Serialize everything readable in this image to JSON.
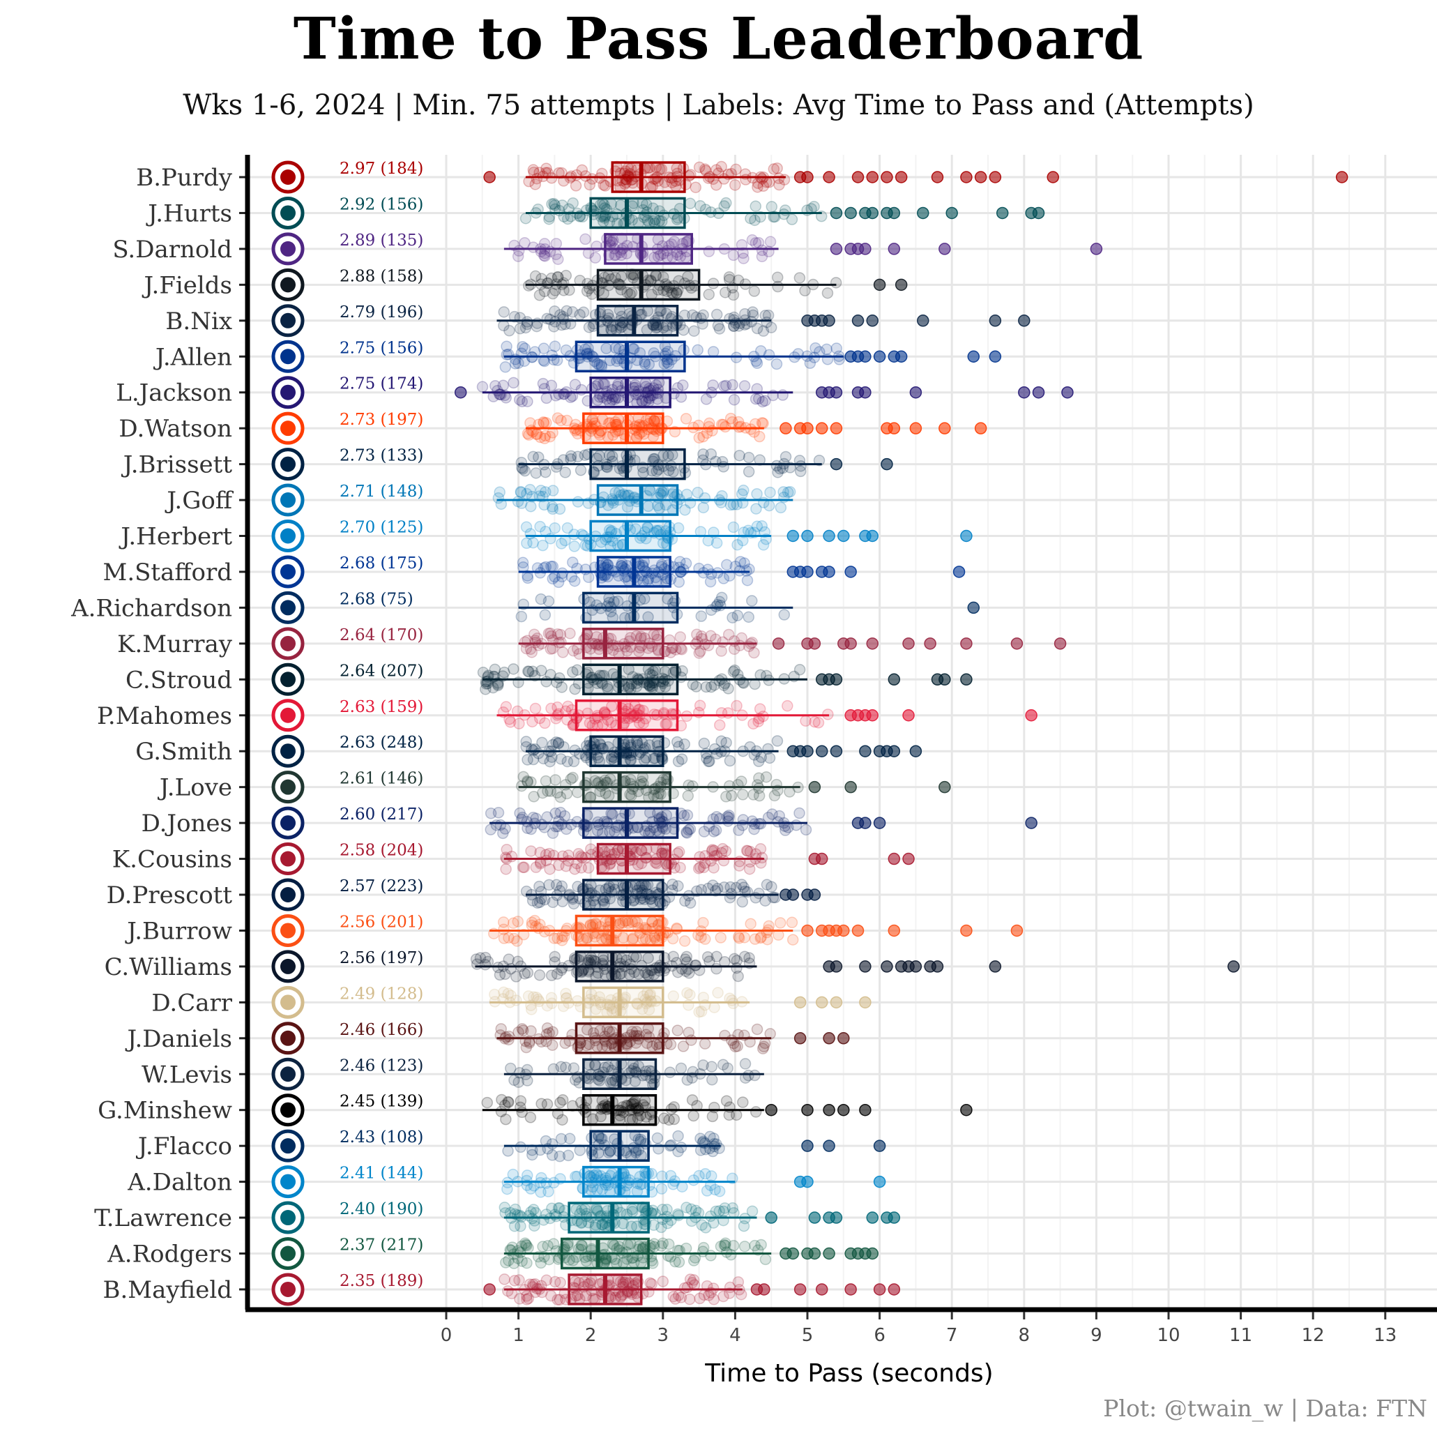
{
  "title": "Time to Pass Leaderboard",
  "subtitle": "Wks 1-6, 2024 | Min. 75 attempts | Labels: Avg Time to Pass and (Attempts)",
  "caption": "Plot: @twain_w | Data: FTN",
  "chart_data": {
    "type": "boxplot",
    "orientation": "horizontal",
    "xlabel": "Time to Pass (seconds)",
    "ylabel": "",
    "xlim": [
      0,
      13
    ],
    "xticks": [
      0,
      1,
      2,
      3,
      4,
      5,
      6,
      7,
      8,
      9,
      10,
      11,
      12,
      13
    ],
    "grid": true,
    "legend": "none",
    "labels_note": "Avg Time to Pass and (Attempts)",
    "series": [
      {
        "name": "B.Purdy",
        "team_icon": "49ers-logo",
        "color": "#aa0000",
        "avg": "2.97",
        "attempts": "184",
        "label": "2.97 (184)",
        "whisker_low": 1.1,
        "q1": 2.3,
        "median": 2.7,
        "q3": 3.3,
        "whisker_high": 4.7,
        "outliers": [
          0.6,
          4.9,
          5.0,
          5.3,
          5.7,
          5.9,
          6.1,
          6.3,
          6.8,
          7.2,
          7.4,
          7.6,
          8.4,
          12.4
        ]
      },
      {
        "name": "J.Hurts",
        "team_icon": "eagles-logo",
        "color": "#004c54",
        "avg": "2.92",
        "attempts": "156",
        "label": "2.92 (156)",
        "whisker_low": 1.1,
        "q1": 2.0,
        "median": 2.5,
        "q3": 3.3,
        "whisker_high": 5.2,
        "outliers": [
          5.4,
          5.6,
          5.8,
          5.9,
          6.1,
          6.2,
          6.6,
          7.0,
          7.7,
          8.1,
          8.2
        ]
      },
      {
        "name": "S.Darnold",
        "team_icon": "vikings-logo",
        "color": "#4f2683",
        "avg": "2.89",
        "attempts": "135",
        "label": "2.89 (135)",
        "whisker_low": 0.8,
        "q1": 2.2,
        "median": 2.7,
        "q3": 3.4,
        "whisker_high": 4.6,
        "outliers": [
          5.4,
          5.6,
          5.7,
          5.8,
          6.2,
          6.9,
          9.0
        ]
      },
      {
        "name": "J.Fields",
        "team_icon": "steelers-logo",
        "color": "#101820",
        "avg": "2.88",
        "attempts": "158",
        "label": "2.88 (158)",
        "whisker_low": 1.1,
        "q1": 2.1,
        "median": 2.7,
        "q3": 3.5,
        "whisker_high": 5.4,
        "outliers": [
          6.0,
          6.3
        ]
      },
      {
        "name": "B.Nix",
        "team_icon": "broncos-logo",
        "color": "#0a2343",
        "avg": "2.79",
        "attempts": "196",
        "label": "2.79 (196)",
        "whisker_low": 0.7,
        "q1": 2.1,
        "median": 2.6,
        "q3": 3.2,
        "whisker_high": 4.5,
        "outliers": [
          5.0,
          5.1,
          5.2,
          5.3,
          5.7,
          5.9,
          6.6,
          7.6,
          8.0
        ]
      },
      {
        "name": "J.Allen",
        "team_icon": "bills-logo",
        "color": "#00338d",
        "avg": "2.75",
        "attempts": "156",
        "label": "2.75 (156)",
        "whisker_low": 0.8,
        "q1": 1.8,
        "median": 2.5,
        "q3": 3.3,
        "whisker_high": 5.5,
        "outliers": [
          5.6,
          5.7,
          5.8,
          6.0,
          6.2,
          6.3,
          7.3,
          7.6
        ]
      },
      {
        "name": "L.Jackson",
        "team_icon": "ravens-logo",
        "color": "#241773",
        "avg": "2.75",
        "attempts": "174",
        "label": "2.75 (174)",
        "whisker_low": 0.5,
        "q1": 2.0,
        "median": 2.5,
        "q3": 3.1,
        "whisker_high": 4.8,
        "outliers": [
          0.2,
          5.2,
          5.3,
          5.4,
          5.7,
          5.8,
          6.5,
          8.0,
          8.2,
          8.6
        ]
      },
      {
        "name": "D.Watson",
        "team_icon": "browns-logo",
        "color": "#ff3c00",
        "avg": "2.73",
        "attempts": "197",
        "label": "2.73 (197)",
        "whisker_low": 1.1,
        "q1": 1.9,
        "median": 2.5,
        "q3": 3.0,
        "whisker_high": 4.4,
        "outliers": [
          4.7,
          4.9,
          5.0,
          5.2,
          5.4,
          6.1,
          6.2,
          6.5,
          6.9,
          7.4
        ]
      },
      {
        "name": "J.Brissett",
        "team_icon": "patriots-logo",
        "color": "#002244",
        "avg": "2.73",
        "attempts": "133",
        "label": "2.73 (133)",
        "whisker_low": 1.0,
        "q1": 2.0,
        "median": 2.5,
        "q3": 3.3,
        "whisker_high": 5.2,
        "outliers": [
          5.4,
          6.1
        ]
      },
      {
        "name": "J.Goff",
        "team_icon": "lions-logo",
        "color": "#0076b6",
        "avg": "2.71",
        "attempts": "148",
        "label": "2.71 (148)",
        "whisker_low": 0.7,
        "q1": 2.1,
        "median": 2.7,
        "q3": 3.2,
        "whisker_high": 4.8,
        "outliers": []
      },
      {
        "name": "J.Herbert",
        "team_icon": "chargers-logo",
        "color": "#0080c6",
        "avg": "2.70",
        "attempts": "125",
        "label": "2.70 (125)",
        "whisker_low": 1.1,
        "q1": 2.0,
        "median": 2.5,
        "q3": 3.1,
        "whisker_high": 4.5,
        "outliers": [
          4.8,
          5.0,
          5.3,
          5.5,
          5.8,
          5.9,
          7.2
        ]
      },
      {
        "name": "M.Stafford",
        "team_icon": "rams-logo",
        "color": "#003594",
        "avg": "2.68",
        "attempts": "175",
        "label": "2.68 (175)",
        "whisker_low": 1.0,
        "q1": 2.1,
        "median": 2.6,
        "q3": 3.1,
        "whisker_high": 4.2,
        "outliers": [
          4.8,
          4.9,
          5.0,
          5.2,
          5.3,
          5.6,
          7.1
        ]
      },
      {
        "name": "A.Richardson",
        "team_icon": "colts-logo",
        "color": "#002c5f",
        "avg": "2.68",
        "attempts": "75",
        "label": "2.68 (75)",
        "whisker_low": 1.0,
        "q1": 1.9,
        "median": 2.6,
        "q3": 3.2,
        "whisker_high": 4.8,
        "outliers": [
          7.3
        ]
      },
      {
        "name": "K.Murray",
        "team_icon": "cardinals-logo",
        "color": "#97233f",
        "avg": "2.64",
        "attempts": "170",
        "label": "2.64 (170)",
        "whisker_low": 1.0,
        "q1": 1.9,
        "median": 2.2,
        "q3": 3.0,
        "whisker_high": 4.3,
        "outliers": [
          4.6,
          5.0,
          5.1,
          5.5,
          5.6,
          5.9,
          6.4,
          6.7,
          7.2,
          7.9,
          8.5
        ]
      },
      {
        "name": "C.Stroud",
        "team_icon": "texans-logo",
        "color": "#03202f",
        "avg": "2.64",
        "attempts": "207",
        "label": "2.64 (207)",
        "whisker_low": 0.5,
        "q1": 1.9,
        "median": 2.4,
        "q3": 3.2,
        "whisker_high": 5.0,
        "outliers": [
          5.2,
          5.3,
          5.4,
          6.2,
          6.8,
          6.9,
          7.2
        ]
      },
      {
        "name": "P.Mahomes",
        "team_icon": "chiefs-logo",
        "color": "#e31837",
        "avg": "2.63",
        "attempts": "159",
        "label": "2.63 (159)",
        "whisker_low": 0.7,
        "q1": 1.8,
        "median": 2.4,
        "q3": 3.2,
        "whisker_high": 5.3,
        "outliers": [
          5.6,
          5.7,
          5.8,
          5.9,
          6.4,
          8.1
        ]
      },
      {
        "name": "G.Smith",
        "team_icon": "seahawks-logo",
        "color": "#002244",
        "avg": "2.63",
        "attempts": "248",
        "label": "2.63 (248)",
        "whisker_low": 1.1,
        "q1": 2.0,
        "median": 2.4,
        "q3": 3.0,
        "whisker_high": 4.6,
        "outliers": [
          4.8,
          4.9,
          5.0,
          5.2,
          5.4,
          5.8,
          6.0,
          6.1,
          6.2,
          6.5
        ]
      },
      {
        "name": "J.Love",
        "team_icon": "packers-logo",
        "color": "#203731",
        "avg": "2.61",
        "attempts": "146",
        "label": "2.61 (146)",
        "whisker_low": 1.0,
        "q1": 1.9,
        "median": 2.4,
        "q3": 3.1,
        "whisker_high": 4.9,
        "outliers": [
          5.1,
          5.6,
          6.9
        ]
      },
      {
        "name": "D.Jones",
        "team_icon": "giants-logo",
        "color": "#0b2265",
        "avg": "2.60",
        "attempts": "217",
        "label": "2.60 (217)",
        "whisker_low": 0.6,
        "q1": 1.9,
        "median": 2.5,
        "q3": 3.2,
        "whisker_high": 5.0,
        "outliers": [
          5.7,
          5.8,
          6.0,
          8.1
        ]
      },
      {
        "name": "K.Cousins",
        "team_icon": "falcons-logo",
        "color": "#a71930",
        "avg": "2.58",
        "attempts": "204",
        "label": "2.58 (204)",
        "whisker_low": 0.8,
        "q1": 2.1,
        "median": 2.5,
        "q3": 3.1,
        "whisker_high": 4.4,
        "outliers": [
          5.1,
          5.2,
          6.2,
          6.4
        ]
      },
      {
        "name": "D.Prescott",
        "team_icon": "cowboys-logo",
        "color": "#041e42",
        "avg": "2.57",
        "attempts": "223",
        "label": "2.57 (223)",
        "whisker_low": 1.1,
        "q1": 1.9,
        "median": 2.5,
        "q3": 3.0,
        "whisker_high": 4.6,
        "outliers": [
          4.7,
          4.8,
          5.0,
          5.1
        ]
      },
      {
        "name": "J.Burrow",
        "team_icon": "bengals-logo",
        "color": "#fb4f14",
        "avg": "2.56",
        "attempts": "201",
        "label": "2.56 (201)",
        "whisker_low": 0.6,
        "q1": 1.8,
        "median": 2.3,
        "q3": 3.0,
        "whisker_high": 4.8,
        "outliers": [
          5.0,
          5.2,
          5.3,
          5.4,
          5.5,
          5.7,
          6.2,
          7.2,
          7.9
        ]
      },
      {
        "name": "C.Williams",
        "team_icon": "bears-logo",
        "color": "#0b162a",
        "avg": "2.56",
        "attempts": "197",
        "label": "2.56 (197)",
        "whisker_low": 0.4,
        "q1": 1.8,
        "median": 2.3,
        "q3": 3.0,
        "whisker_high": 4.3,
        "outliers": [
          5.3,
          5.4,
          5.8,
          6.1,
          6.3,
          6.4,
          6.5,
          6.7,
          6.8,
          7.6,
          10.9
        ]
      },
      {
        "name": "D.Carr",
        "team_icon": "saints-logo",
        "color": "#d3bc8d",
        "avg": "2.49",
        "attempts": "128",
        "label": "2.49 (128)",
        "whisker_low": 0.6,
        "q1": 1.9,
        "median": 2.4,
        "q3": 3.0,
        "whisker_high": 4.2,
        "outliers": [
          4.9,
          5.2,
          5.4,
          5.8
        ]
      },
      {
        "name": "J.Daniels",
        "team_icon": "commanders-logo",
        "color": "#5a1414",
        "avg": "2.46",
        "attempts": "166",
        "label": "2.46 (166)",
        "whisker_low": 0.7,
        "q1": 1.8,
        "median": 2.4,
        "q3": 3.0,
        "whisker_high": 4.5,
        "outliers": [
          4.9,
          5.3,
          5.5
        ]
      },
      {
        "name": "W.Levis",
        "team_icon": "titans-logo",
        "color": "#0c2340",
        "avg": "2.46",
        "attempts": "123",
        "label": "2.46 (123)",
        "whisker_low": 0.8,
        "q1": 1.9,
        "median": 2.4,
        "q3": 2.9,
        "whisker_high": 4.4,
        "outliers": []
      },
      {
        "name": "G.Minshew",
        "team_icon": "raiders-logo",
        "color": "#000000",
        "avg": "2.45",
        "attempts": "139",
        "label": "2.45 (139)",
        "whisker_low": 0.5,
        "q1": 1.9,
        "median": 2.3,
        "q3": 2.9,
        "whisker_high": 4.4,
        "outliers": [
          4.5,
          5.0,
          5.3,
          5.5,
          5.8,
          7.2
        ]
      },
      {
        "name": "J.Flacco",
        "team_icon": "colts-logo",
        "color": "#002c5f",
        "avg": "2.43",
        "attempts": "108",
        "label": "2.43 (108)",
        "whisker_low": 0.8,
        "q1": 2.0,
        "median": 2.4,
        "q3": 2.8,
        "whisker_high": 3.8,
        "outliers": [
          5.0,
          5.3,
          6.0
        ]
      },
      {
        "name": "A.Dalton",
        "team_icon": "panthers-logo",
        "color": "#0085ca",
        "avg": "2.41",
        "attempts": "144",
        "label": "2.41 (144)",
        "whisker_low": 0.8,
        "q1": 1.9,
        "median": 2.4,
        "q3": 2.8,
        "whisker_high": 4.0,
        "outliers": [
          4.9,
          5.0,
          6.0
        ]
      },
      {
        "name": "T.Lawrence",
        "team_icon": "jaguars-logo",
        "color": "#006778",
        "avg": "2.40",
        "attempts": "190",
        "label": "2.40 (190)",
        "whisker_low": 0.8,
        "q1": 1.7,
        "median": 2.3,
        "q3": 2.8,
        "whisker_high": 4.3,
        "outliers": [
          4.5,
          5.1,
          5.3,
          5.4,
          5.9,
          6.1,
          6.2
        ]
      },
      {
        "name": "A.Rodgers",
        "team_icon": "jets-logo",
        "color": "#125740",
        "avg": "2.37",
        "attempts": "217",
        "label": "2.37 (217)",
        "whisker_low": 0.8,
        "q1": 1.6,
        "median": 2.1,
        "q3": 2.8,
        "whisker_high": 4.5,
        "outliers": [
          4.7,
          4.8,
          5.0,
          5.1,
          5.3,
          5.6,
          5.7,
          5.8,
          5.9
        ]
      },
      {
        "name": "B.Mayfield",
        "team_icon": "buccaneers-logo",
        "color": "#a71930",
        "avg": "2.35",
        "attempts": "189",
        "label": "2.35 (189)",
        "whisker_low": 0.8,
        "q1": 1.7,
        "median": 2.2,
        "q3": 2.7,
        "whisker_high": 4.1,
        "outliers": [
          0.6,
          4.3,
          4.4,
          4.9,
          5.2,
          5.6,
          6.0,
          6.2
        ]
      }
    ]
  }
}
